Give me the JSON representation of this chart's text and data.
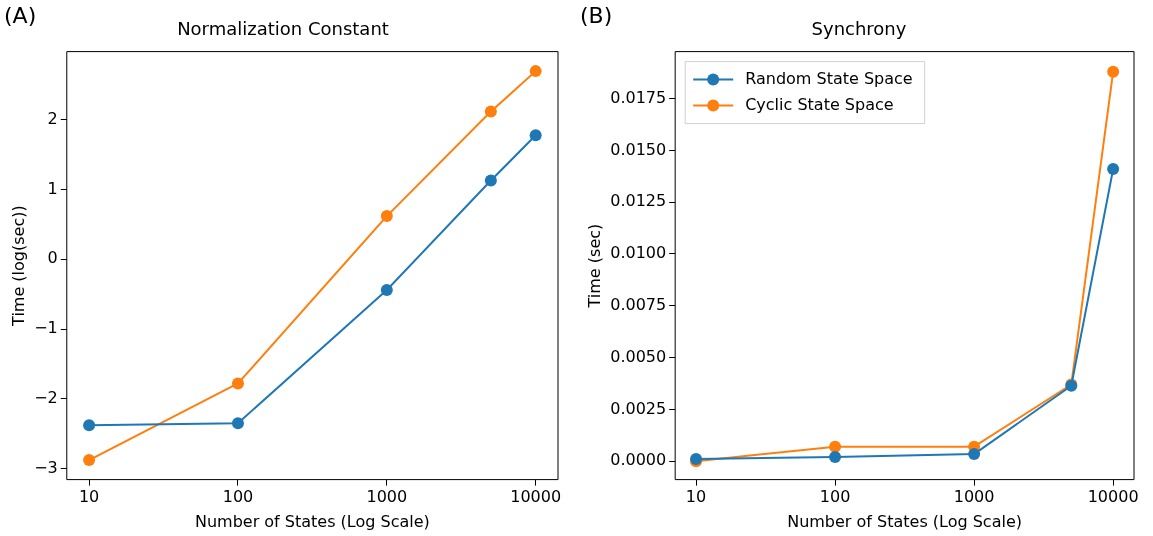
{
  "chart_data": [
    {
      "type": "line",
      "title": "Normalization Constant",
      "xlabel": "Number of States (Log Scale)",
      "ylabel": "Time (log(sec))",
      "annotations": [
        "(A)"
      ],
      "log": "x",
      "x": [
        10,
        100,
        1000,
        5000,
        10000
      ],
      "xlim": [
        7.08,
        14125
      ],
      "xticks": [
        10,
        100,
        1000,
        10000
      ],
      "ylim": [
        -3.16,
        2.98
      ],
      "yticks": [
        {
          "value": -3,
          "label": "−3"
        },
        {
          "value": -2,
          "label": "−2"
        },
        {
          "value": -1,
          "label": "−1"
        },
        0,
        1,
        2
      ],
      "grid": false,
      "legend": false,
      "marker": "circle",
      "line_style": "solid",
      "series": [
        {
          "color": "#1f77b4",
          "values": [
            -2.38,
            -2.35,
            -0.44,
            1.13,
            1.78
          ]
        },
        {
          "color": "#ff7f0e",
          "values": [
            -2.88,
            -1.78,
            0.62,
            2.12,
            2.7
          ]
        }
      ]
    },
    {
      "type": "line",
      "title": "Synchrony",
      "xlabel": "Number of States (Log Scale)",
      "ylabel": "Time (sec)",
      "annotations": [
        "(B)"
      ],
      "log": "x",
      "x": [
        10,
        100,
        1000,
        5000,
        10000
      ],
      "xlim": [
        7.08,
        14125
      ],
      "xticks": [
        10,
        100,
        1000,
        10000
      ],
      "ylim": [
        -0.00089,
        0.01977
      ],
      "yticks": [
        {
          "value": 0,
          "label": "0.0000"
        },
        {
          "value": 0.0025,
          "label": "0.0025"
        },
        {
          "value": 0.005,
          "label": "0.0050"
        },
        {
          "value": 0.0075,
          "label": "0.0075"
        },
        {
          "value": 0.01,
          "label": "0.0100"
        },
        {
          "value": 0.0125,
          "label": "0.0125"
        },
        {
          "value": 0.015,
          "label": "0.0150"
        },
        {
          "value": 0.0175,
          "label": "0.0175"
        }
      ],
      "grid": false,
      "legend": "top left",
      "marker": "circle",
      "line_style": "solid",
      "series": [
        {
          "name": "Random State Space",
          "color": "#1f77b4",
          "values": [
            0.0001,
            0.0002,
            0.00034,
            0.00364,
            0.0141
          ]
        },
        {
          "name": "Cyclic State Space",
          "color": "#ff7f0e",
          "values": [
            0,
            0.0007,
            0.0007,
            0.0037,
            0.0188
          ]
        }
      ]
    }
  ]
}
